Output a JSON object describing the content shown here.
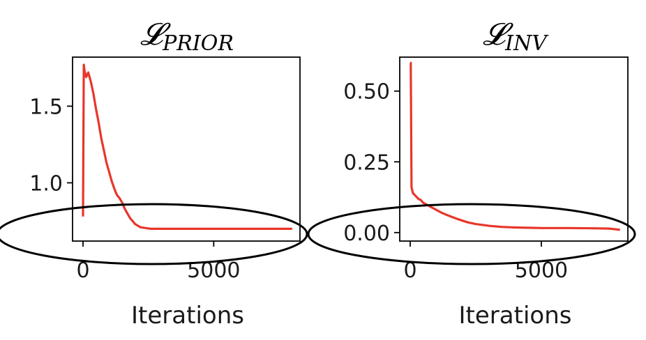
{
  "chart_data": [
    {
      "type": "line",
      "title": "𝓛",
      "title_subscript": "PRIOR",
      "xlabel": "Iterations",
      "ylabel": "",
      "xlim": [
        -400,
        8300
      ],
      "ylim": [
        0.62,
        1.82
      ],
      "xticks": [
        {
          "value": 0,
          "label": "0"
        },
        {
          "value": 5000,
          "label": "5000"
        }
      ],
      "yticks": [
        {
          "value": 1.0,
          "label": "1.0"
        },
        {
          "value": 1.5,
          "label": "1.5"
        }
      ],
      "grid": false,
      "color": "#e8362a",
      "annotation": "ellipse",
      "series": [
        {
          "x": [
            0,
            30,
            60,
            120,
            200,
            300,
            400,
            500,
            600,
            700,
            800,
            900,
            1000,
            1100,
            1200,
            1300,
            1400,
            1500,
            1600,
            1700,
            1800,
            1900,
            2000,
            2100,
            2200,
            2400,
            2600,
            3000,
            4000,
            5000,
            6000,
            7000,
            8000
          ],
          "y": [
            0.78,
            1.77,
            1.73,
            1.69,
            1.72,
            1.66,
            1.58,
            1.48,
            1.39,
            1.29,
            1.21,
            1.13,
            1.07,
            1.01,
            0.96,
            0.92,
            0.9,
            0.87,
            0.83,
            0.8,
            0.77,
            0.75,
            0.73,
            0.72,
            0.71,
            0.705,
            0.7,
            0.7,
            0.7,
            0.7,
            0.7,
            0.7,
            0.7
          ]
        }
      ]
    },
    {
      "type": "line",
      "title": "𝓛",
      "title_subscript": "INV",
      "xlabel": "Iterations",
      "ylabel": "",
      "xlim": [
        -400,
        8300
      ],
      "ylim": [
        -0.03,
        0.62
      ],
      "xticks": [
        {
          "value": 0,
          "label": "0"
        },
        {
          "value": 5000,
          "label": "5000"
        }
      ],
      "yticks": [
        {
          "value": 0.0,
          "label": "0.00"
        },
        {
          "value": 0.25,
          "label": "0.25"
        },
        {
          "value": 0.5,
          "label": "0.50"
        }
      ],
      "grid": false,
      "color": "#e8362a",
      "annotation": "ellipse",
      "series": [
        {
          "x": [
            0,
            20,
            50,
            100,
            200,
            300,
            400,
            500,
            600,
            700,
            800,
            900,
            1000,
            1200,
            1400,
            1600,
            1800,
            2000,
            2200,
            2500,
            3000,
            3500,
            4000,
            5000,
            6000,
            7000,
            7600,
            8000
          ],
          "y": [
            0.6,
            0.6,
            0.16,
            0.14,
            0.13,
            0.12,
            0.115,
            0.105,
            0.1,
            0.095,
            0.09,
            0.085,
            0.08,
            0.07,
            0.062,
            0.055,
            0.048,
            0.042,
            0.036,
            0.03,
            0.024,
            0.02,
            0.018,
            0.016,
            0.016,
            0.015,
            0.014,
            0.01
          ]
        }
      ]
    }
  ]
}
